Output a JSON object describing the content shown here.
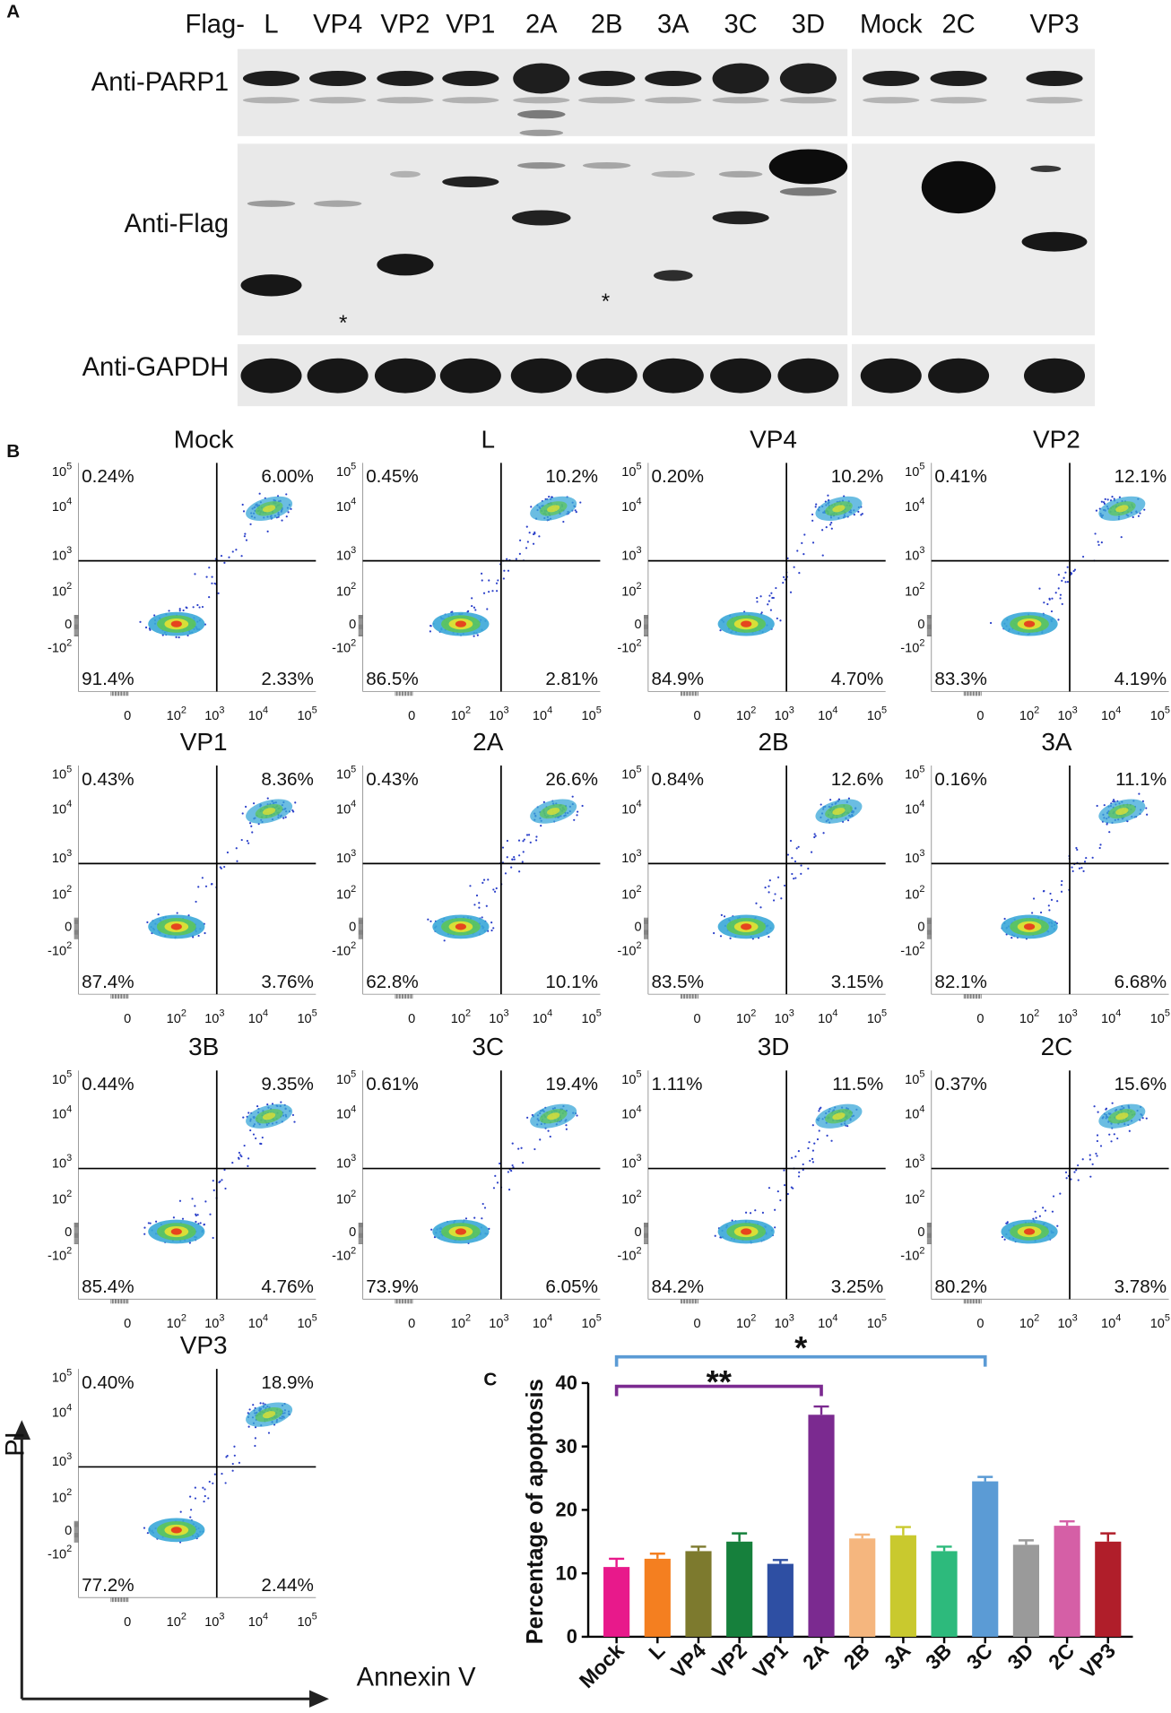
{
  "panel_labels": [
    "A",
    "B",
    "C"
  ],
  "blot": {
    "lane_prefix": "Flag-",
    "lanes": [
      "L",
      "VP4",
      "VP2",
      "VP1",
      "2A",
      "2B",
      "3A",
      "3C",
      "3D",
      "Mock",
      "2C",
      "VP3"
    ],
    "rows": [
      "Anti-PARP1",
      "Anti-Flag",
      "Anti-GAPDH"
    ],
    "markers": [
      "*",
      "*"
    ]
  },
  "flow": {
    "x_axis_label": "Annexin V",
    "y_axis_label": "PI",
    "x_ticks": [
      {
        "base": "0"
      },
      {
        "base": "10",
        "exp": "2"
      },
      {
        "base": "10",
        "exp": "3"
      },
      {
        "base": "10",
        "exp": "4"
      },
      {
        "base": "10",
        "exp": "5"
      }
    ],
    "y_ticks": [
      {
        "base": "10",
        "exp": "5"
      },
      {
        "base": "10",
        "exp": "4"
      },
      {
        "base": "10",
        "exp": "3"
      },
      {
        "base": "10",
        "exp": "2"
      },
      {
        "base": "0"
      },
      {
        "base": "-10",
        "exp": "2"
      }
    ],
    "panels": [
      {
        "title": "Mock",
        "quadrants": [
          "0.24%",
          "6.00%",
          "91.4%",
          "2.33%"
        ]
      },
      {
        "title": "L",
        "quadrants": [
          "0.45%",
          "10.2%",
          "86.5%",
          "2.81%"
        ]
      },
      {
        "title": "VP4",
        "quadrants": [
          "0.20%",
          "10.2%",
          "84.9%",
          "4.70%"
        ]
      },
      {
        "title": "VP2",
        "quadrants": [
          "0.41%",
          "12.1%",
          "83.3%",
          "4.19%"
        ]
      },
      {
        "title": "VP1",
        "quadrants": [
          "0.43%",
          "8.36%",
          "87.4%",
          "3.76%"
        ]
      },
      {
        "title": "2A",
        "quadrants": [
          "0.43%",
          "26.6%",
          "62.8%",
          "10.1%"
        ]
      },
      {
        "title": "2B",
        "quadrants": [
          "0.84%",
          "12.6%",
          "83.5%",
          "3.15%"
        ]
      },
      {
        "title": "3A",
        "quadrants": [
          "0.16%",
          "11.1%",
          "82.1%",
          "6.68%"
        ]
      },
      {
        "title": "3B",
        "quadrants": [
          "0.44%",
          "9.35%",
          "85.4%",
          "4.76%"
        ]
      },
      {
        "title": "3C",
        "quadrants": [
          "0.61%",
          "19.4%",
          "73.9%",
          "6.05%"
        ]
      },
      {
        "title": "3D",
        "quadrants": [
          "1.11%",
          "11.5%",
          "84.2%",
          "3.25%"
        ]
      },
      {
        "title": "2C",
        "quadrants": [
          "0.37%",
          "15.6%",
          "80.2%",
          "3.78%"
        ]
      },
      {
        "title": "VP3",
        "quadrants": [
          "0.40%",
          "18.9%",
          "77.2%",
          "2.44%"
        ]
      }
    ]
  },
  "chart_data": {
    "type": "bar",
    "ylabel": "Percentage of apoptosis",
    "categories": [
      "Mock",
      "L",
      "VP4",
      "VP2",
      "VP1",
      "2A",
      "2B",
      "3A",
      "3B",
      "3C",
      "3D",
      "2C",
      "VP3"
    ],
    "values": [
      11,
      12.3,
      13.5,
      15,
      11.5,
      35,
      15.5,
      16,
      13.5,
      24.5,
      14.5,
      17.5,
      15
    ],
    "errors": [
      1.3,
      0.8,
      0.7,
      1.3,
      0.6,
      1.3,
      0.6,
      1.3,
      0.7,
      0.7,
      0.7,
      0.7,
      1.3
    ],
    "colors": [
      "#e8198b",
      "#f47f20",
      "#7d7a2e",
      "#16803c",
      "#2e4fa3",
      "#7b2a90",
      "#f5b67e",
      "#c9c92e",
      "#2dba7c",
      "#5b9bd5",
      "#9a9a9a",
      "#d55fa6",
      "#b01e2a"
    ],
    "ylim": [
      0,
      40
    ],
    "yticks": [
      0,
      10,
      20,
      30,
      40
    ],
    "annotations": [
      {
        "text": "*",
        "from": "Mock",
        "to": "3C",
        "color": "#5b9bd5"
      },
      {
        "text": "**",
        "from": "Mock",
        "to": "2A",
        "color": "#7b2a90"
      }
    ]
  }
}
